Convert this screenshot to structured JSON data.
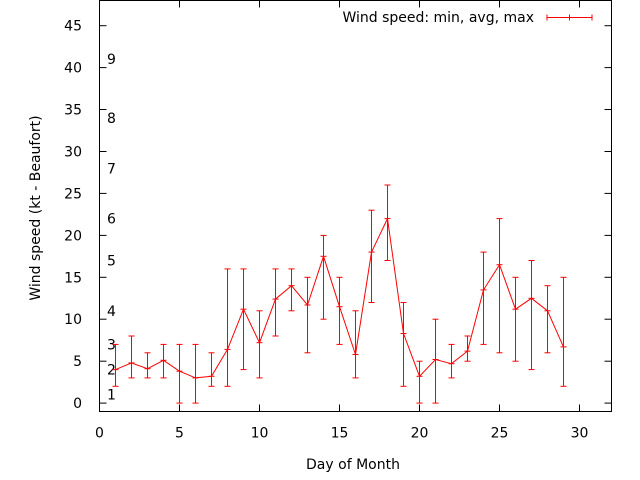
{
  "chart_data": {
    "type": "line",
    "title": "",
    "xlabel": "Day of Month",
    "ylabel": "Wind speed (kt - Beaufort)",
    "xlim": [
      0,
      32
    ],
    "ylim": [
      -1,
      48
    ],
    "xticks": [
      0,
      5,
      10,
      15,
      20,
      25,
      30
    ],
    "yticks": [
      0,
      5,
      10,
      15,
      20,
      25,
      30,
      35,
      40,
      45
    ],
    "grid": false,
    "legend_position": "top-right",
    "series": [
      {
        "name": "Wind speed: min, avg, max",
        "color": "#ff0000",
        "x": [
          1,
          2,
          3,
          4,
          5,
          6,
          7,
          8,
          9,
          10,
          11,
          12,
          13,
          14,
          15,
          16,
          17,
          18,
          19,
          20,
          21,
          22,
          23,
          24,
          25,
          26,
          27,
          28,
          29
        ],
        "avg": [
          4,
          4.8,
          4.1,
          5.1,
          3.8,
          3,
          3.2,
          6.4,
          11.2,
          7.2,
          12.4,
          14,
          11.7,
          17.5,
          11.5,
          5.8,
          18,
          22,
          8.3,
          3.2,
          5.2,
          4.7,
          6.2,
          13.5,
          16.5,
          11.2,
          12.5,
          11,
          6.7
        ],
        "min": [
          2,
          3,
          3,
          3,
          0,
          0,
          2,
          2,
          4,
          3,
          8,
          11,
          6,
          10,
          7,
          3,
          12,
          17,
          2,
          0,
          0,
          3,
          5,
          7,
          6,
          5,
          4,
          6,
          2
        ],
        "max": [
          7,
          8,
          6,
          7,
          7,
          7,
          6,
          16,
          16,
          11,
          16,
          16,
          15,
          20,
          15,
          11,
          23,
          26,
          12,
          5,
          10,
          7,
          8,
          18,
          22,
          15,
          17,
          14,
          15
        ]
      }
    ],
    "annotations": [
      {
        "text": "1",
        "y": 1
      },
      {
        "text": "2",
        "y": 4
      },
      {
        "text": "3",
        "y": 7
      },
      {
        "text": "4",
        "y": 11
      },
      {
        "text": "5",
        "y": 17
      },
      {
        "text": "6",
        "y": 22
      },
      {
        "text": "7",
        "y": 28
      },
      {
        "text": "8",
        "y": 34
      },
      {
        "text": "9",
        "y": 41
      }
    ]
  }
}
